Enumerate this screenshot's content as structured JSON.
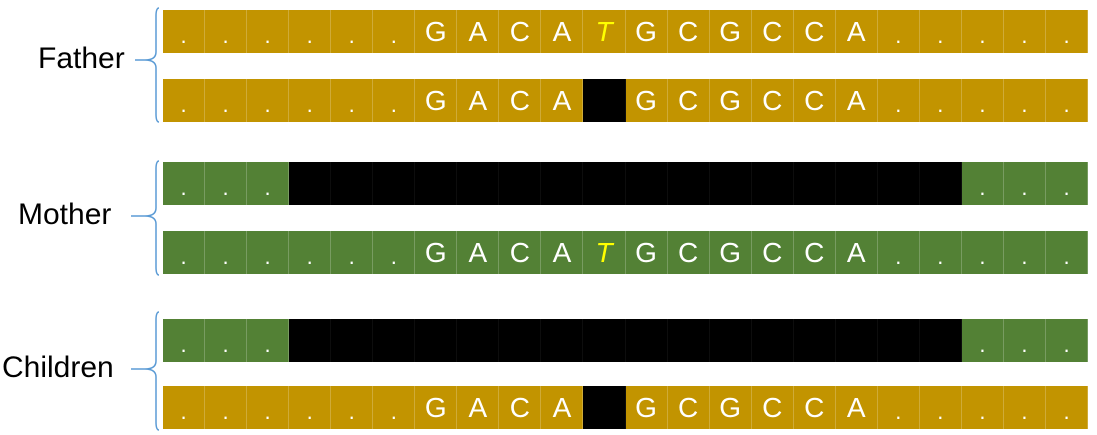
{
  "colors": {
    "father": "#C29400",
    "mother": "#538135",
    "deleted": "#000000",
    "highlight": "#FFFF00",
    "text": "#FFFFFF",
    "brace": "#5B9BD5"
  },
  "groups": [
    {
      "label": "Father",
      "strands": [
        {
          "color": "father",
          "cells": [
            ".",
            ".",
            ".",
            ".",
            ".",
            ".",
            "G",
            "A",
            "C",
            "A",
            "T",
            "G",
            "C",
            "G",
            "C",
            "C",
            "A",
            ".",
            ".",
            ".",
            ".",
            "."
          ],
          "black": [],
          "highlight": [
            10
          ]
        },
        {
          "color": "father",
          "cells": [
            ".",
            ".",
            ".",
            ".",
            ".",
            ".",
            "G",
            "A",
            "C",
            "A",
            "",
            "G",
            "C",
            "G",
            "C",
            "C",
            "A",
            ".",
            ".",
            ".",
            ".",
            "."
          ],
          "black": [
            10
          ],
          "highlight": []
        }
      ]
    },
    {
      "label": "Mother",
      "strands": [
        {
          "color": "mother",
          "cells": [
            ".",
            ".",
            ".",
            "",
            "",
            "",
            "",
            "",
            "",
            "",
            "",
            "",
            "",
            "",
            "",
            "",
            "",
            "",
            "",
            ".",
            ".",
            "."
          ],
          "black": [
            3,
            4,
            5,
            6,
            7,
            8,
            9,
            10,
            11,
            12,
            13,
            14,
            15,
            16,
            17,
            18
          ],
          "highlight": []
        },
        {
          "color": "mother",
          "cells": [
            ".",
            ".",
            ".",
            ".",
            ".",
            ".",
            "G",
            "A",
            "C",
            "A",
            "T",
            "G",
            "C",
            "G",
            "C",
            "C",
            "A",
            ".",
            ".",
            ".",
            ".",
            "."
          ],
          "black": [],
          "highlight": [
            10
          ]
        }
      ]
    },
    {
      "label": "Children",
      "strands": [
        {
          "color": "mother",
          "cells": [
            ".",
            ".",
            ".",
            "",
            "",
            "",
            "",
            "",
            "",
            "",
            "",
            "",
            "",
            "",
            "",
            "",
            "",
            "",
            "",
            ".",
            ".",
            "."
          ],
          "black": [
            3,
            4,
            5,
            6,
            7,
            8,
            9,
            10,
            11,
            12,
            13,
            14,
            15,
            16,
            17,
            18
          ],
          "highlight": []
        },
        {
          "color": "father",
          "cells": [
            ".",
            ".",
            ".",
            ".",
            ".",
            ".",
            "G",
            "A",
            "C",
            "A",
            "",
            "G",
            "C",
            "G",
            "C",
            "C",
            "A",
            ".",
            ".",
            ".",
            ".",
            "."
          ],
          "black": [
            10
          ],
          "highlight": []
        }
      ]
    }
  ]
}
